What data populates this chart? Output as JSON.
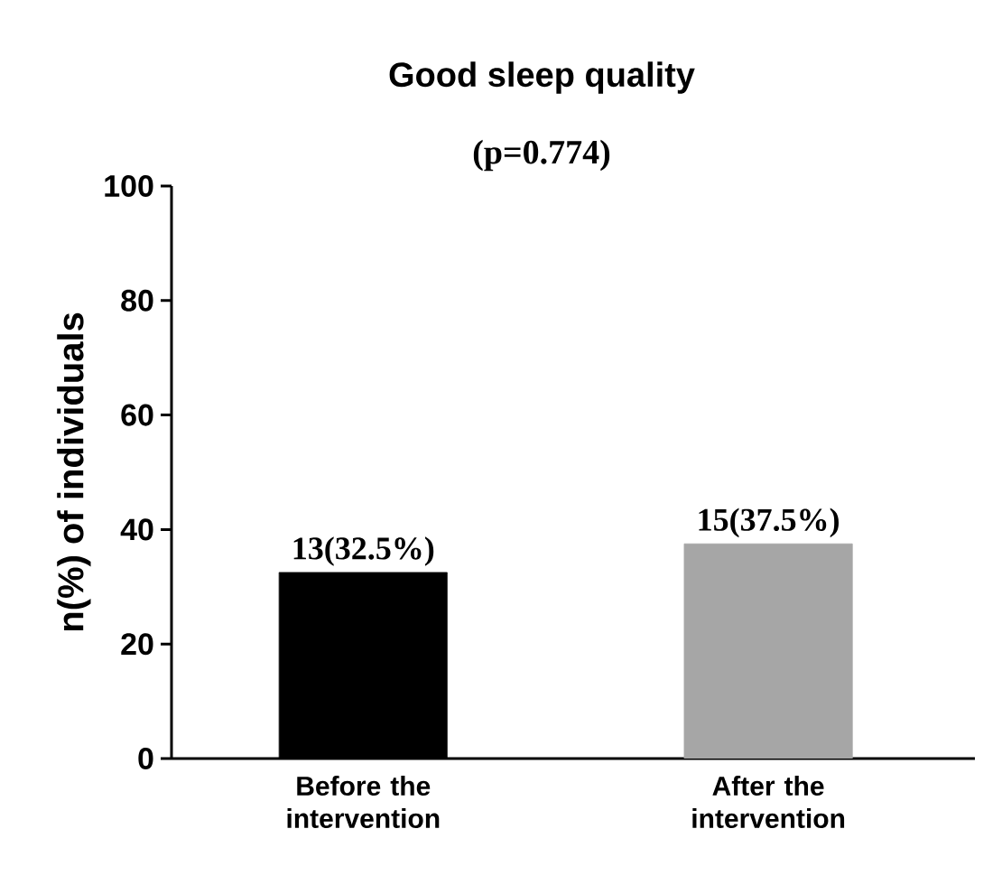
{
  "chart_data": {
    "type": "bar",
    "title": "Good sleep quality",
    "subtitle": "(p=0.774)",
    "ylabel": "n(%) of individuals",
    "categories": [
      "Before the intervention",
      "After the intervention"
    ],
    "values": [
      32.5,
      37.5
    ],
    "colors": [
      "#000000",
      "#a6a6a6"
    ],
    "value_labels": [
      "13(32.5%)",
      "15(37.5%)"
    ],
    "ylim": [
      0,
      100
    ],
    "yticks": [
      0,
      20,
      40,
      60,
      80,
      100
    ]
  }
}
